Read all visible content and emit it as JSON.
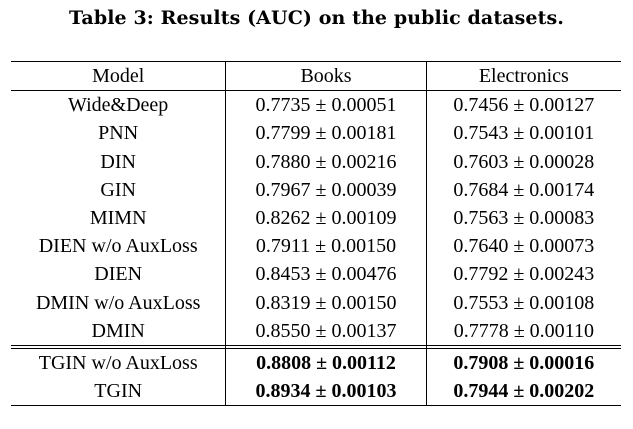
{
  "caption": "Table 3: Results (AUC) on the public datasets.",
  "columns": [
    "Model",
    "Books",
    "Electronics"
  ],
  "rows": [
    {
      "model": "Wide&Deep",
      "books": "0.7735 ± 0.00051",
      "electronics": "0.7456 ± 0.00127"
    },
    {
      "model": "PNN",
      "books": "0.7799 ± 0.00181",
      "electronics": "0.7543 ± 0.00101"
    },
    {
      "model": "DIN",
      "books": "0.7880 ± 0.00216",
      "electronics": "0.7603 ± 0.00028"
    },
    {
      "model": "GIN",
      "books": "0.7967 ± 0.00039",
      "electronics": "0.7684 ± 0.00174"
    },
    {
      "model": "MIMN",
      "books": "0.8262 ± 0.00109",
      "electronics": "0.7563 ± 0.00083"
    },
    {
      "model": "DIEN w/o AuxLoss",
      "books": "0.7911 ± 0.00150",
      "electronics": "0.7640 ± 0.00073"
    },
    {
      "model": "DIEN",
      "books": "0.8453 ± 0.00476",
      "electronics": "0.7792 ± 0.00243"
    },
    {
      "model": "DMIN w/o AuxLoss",
      "books": "0.8319 ± 0.00150",
      "electronics": "0.7553 ± 0.00108"
    },
    {
      "model": "DMIN",
      "books": "0.8550 ± 0.00137",
      "electronics": "0.7778 ± 0.00110"
    }
  ],
  "proposed_rows": [
    {
      "model": "TGIN w/o AuxLoss",
      "books": "0.8808 ± 0.00112",
      "electronics": "0.7908 ± 0.00016"
    },
    {
      "model": "TGIN",
      "books": "0.8934 ± 0.00103",
      "electronics": "0.7944 ± 0.00202"
    }
  ]
}
